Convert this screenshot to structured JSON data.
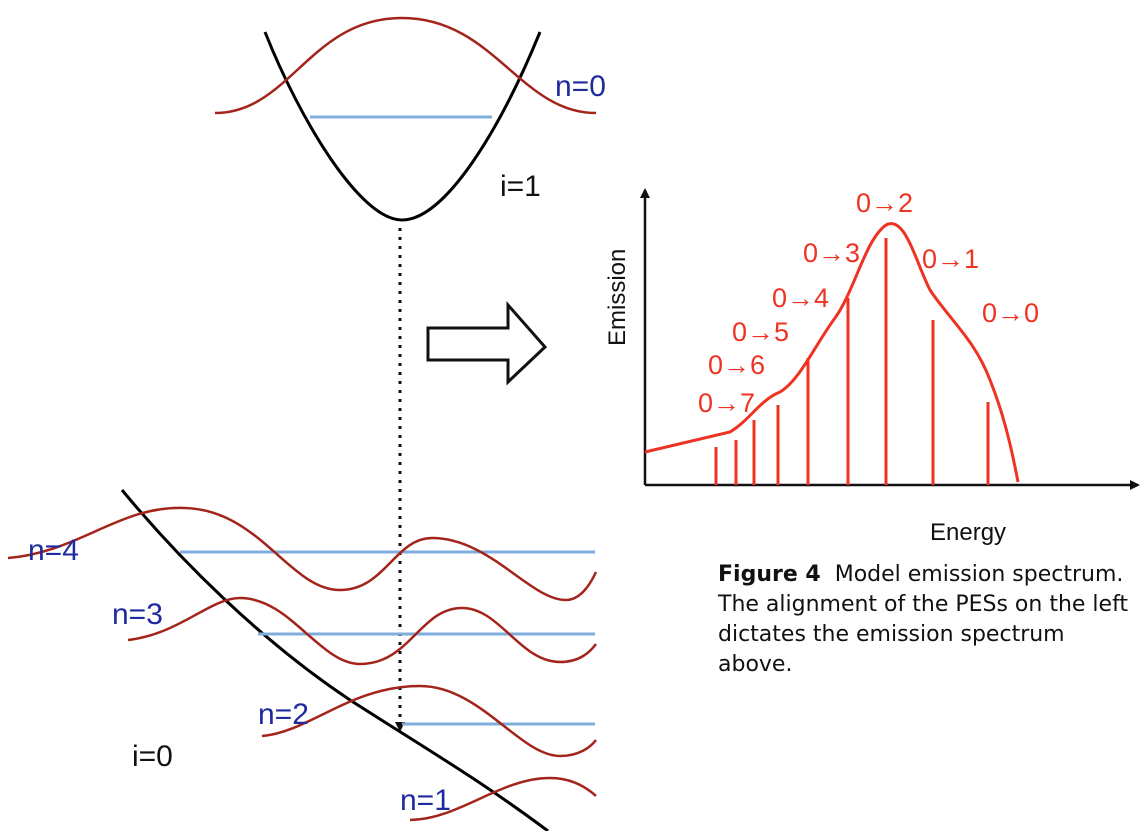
{
  "diagram": {
    "upper_state_label": "i=1",
    "lower_state_label": "i=0",
    "upper_level_labels": [
      "n=0"
    ],
    "lower_level_labels": [
      "n=4",
      "n=3",
      "n=2",
      "n=1"
    ]
  },
  "chart_data": {
    "type": "line",
    "xlabel": "Energy",
    "ylabel": "Emission",
    "transitions": [
      "0→7",
      "0→6",
      "0→5",
      "0→4",
      "0→3",
      "0→2",
      "0→1",
      "0→0"
    ]
  },
  "caption": {
    "label": "Figure 4",
    "text": "Model emission spectrum. The alignment of the PESs on the left dictates the emission spectrum above."
  },
  "colors": {
    "curve": "#000000",
    "wavefunction": "#a3241a",
    "level_line": "#7faedd",
    "level_label": "#1f2a9e",
    "spectrum": "#ee3322"
  }
}
